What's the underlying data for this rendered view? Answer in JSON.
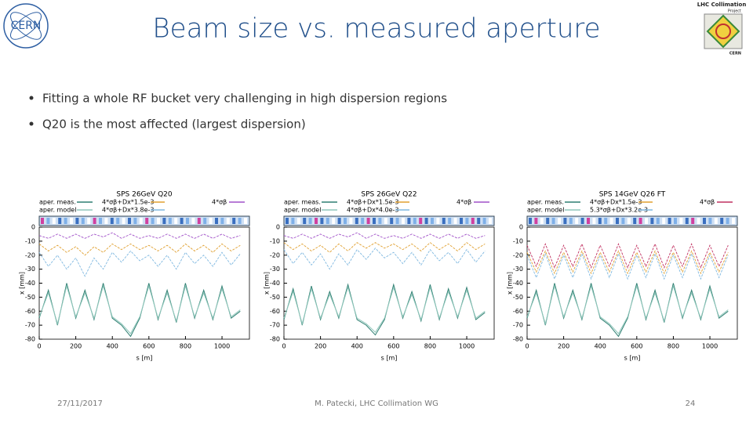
{
  "header": {
    "title": "Beam size vs. measured aperture"
  },
  "logos": {
    "left": "CERN",
    "right": [
      "LHC Collimation",
      "Project",
      "CERN"
    ]
  },
  "bullets": [
    "Fitting a whole RF bucket very challenging in high dispersion regions",
    "Q20 is the most affected (largest dispersion)"
  ],
  "chart_data": [
    {
      "type": "line",
      "title": "SPS 26GeV Q20",
      "xlabel": "s [m]",
      "ylabel": "x [mm]",
      "x": [
        0,
        50,
        100,
        150,
        200,
        250,
        300,
        350,
        400,
        450,
        500,
        550,
        600,
        650,
        700,
        750,
        800,
        850,
        900,
        950,
        1000,
        1050,
        1100
      ],
      "xlim": [
        0,
        1150
      ],
      "xticks": [
        0,
        200,
        400,
        600,
        800,
        1000
      ],
      "ylim": [
        -80,
        0
      ],
      "yticks": [
        0,
        -10,
        -20,
        -30,
        -40,
        -50,
        -60,
        -70,
        -80
      ],
      "series": [
        {
          "name": "aper. meas.",
          "color": "#2f7f72",
          "values": [
            -65,
            -45,
            -70,
            -40,
            -65,
            -45,
            -66,
            -40,
            -65,
            -70,
            -78,
            -65,
            -40,
            -66,
            -45,
            -68,
            -40,
            -65,
            -45,
            -66,
            -42,
            -65,
            -60
          ]
        },
        {
          "name": "aper. model",
          "color": "#8fc7bb",
          "values": [
            -64,
            -47,
            -69,
            -42,
            -64,
            -47,
            -65,
            -42,
            -64,
            -69,
            -76,
            -64,
            -42,
            -65,
            -47,
            -67,
            -42,
            -64,
            -47,
            -65,
            -44,
            -64,
            -59
          ]
        },
        {
          "name": "4*σβ+Dx*1.5e-3",
          "color": "#e0a030",
          "values": [
            -12,
            -17,
            -13,
            -18,
            -14,
            -20,
            -14,
            -18,
            -12,
            -16,
            -12,
            -16,
            -13,
            -17,
            -13,
            -18,
            -12,
            -17,
            -13,
            -18,
            -12,
            -17,
            -13
          ]
        },
        {
          "name": "4*σβ+Dx*3.8e-3",
          "color": "#7fb8e0",
          "values": [
            -18,
            -28,
            -20,
            -30,
            -22,
            -35,
            -22,
            -30,
            -18,
            -25,
            -17,
            -24,
            -20,
            -28,
            -20,
            -30,
            -18,
            -26,
            -20,
            -28,
            -18,
            -27,
            -19
          ]
        },
        {
          "name": "4*σβ",
          "color": "#a050c8",
          "values": [
            -6,
            -8,
            -5,
            -8,
            -5,
            -8,
            -5,
            -7,
            -4,
            -8,
            -5,
            -8,
            -6,
            -8,
            -5,
            -8,
            -5,
            -8,
            -5,
            -8,
            -5,
            -8,
            -6
          ]
        }
      ]
    },
    {
      "type": "line",
      "title": "SPS 26GeV Q22",
      "xlabel": "s [m]",
      "ylabel": "x [mm]",
      "x": [
        0,
        50,
        100,
        150,
        200,
        250,
        300,
        350,
        400,
        450,
        500,
        550,
        600,
        650,
        700,
        750,
        800,
        850,
        900,
        950,
        1000,
        1050,
        1100
      ],
      "xlim": [
        0,
        1150
      ],
      "xticks": [
        0,
        200,
        400,
        600,
        800,
        1000
      ],
      "ylim": [
        -80,
        0
      ],
      "yticks": [
        0,
        -10,
        -20,
        -30,
        -40,
        -50,
        -60,
        -70,
        -80
      ],
      "series": [
        {
          "name": "aper. meas.",
          "color": "#2f7f72",
          "values": [
            -66,
            -44,
            -70,
            -42,
            -66,
            -46,
            -65,
            -41,
            -66,
            -70,
            -77,
            -66,
            -41,
            -65,
            -46,
            -67,
            -41,
            -66,
            -44,
            -65,
            -43,
            -66,
            -61
          ]
        },
        {
          "name": "aper. model",
          "color": "#8fc7bb",
          "values": [
            -65,
            -46,
            -69,
            -44,
            -65,
            -48,
            -64,
            -43,
            -65,
            -69,
            -75,
            -65,
            -43,
            -64,
            -48,
            -66,
            -43,
            -65,
            -46,
            -64,
            -45,
            -65,
            -60
          ]
        },
        {
          "name": "4*σβ+Dx*1.5e-3",
          "color": "#e0a030",
          "values": [
            -11,
            -16,
            -12,
            -17,
            -13,
            -18,
            -12,
            -17,
            -11,
            -15,
            -11,
            -15,
            -12,
            -16,
            -12,
            -17,
            -11,
            -16,
            -12,
            -17,
            -11,
            -16,
            -12
          ]
        },
        {
          "name": "4*σβ+Dx*4.0e-3",
          "color": "#7fb8e0",
          "values": [
            -16,
            -26,
            -18,
            -27,
            -19,
            -30,
            -19,
            -27,
            -16,
            -23,
            -15,
            -22,
            -18,
            -26,
            -18,
            -27,
            -16,
            -24,
            -18,
            -26,
            -16,
            -25,
            -17
          ]
        },
        {
          "name": "4*σβ",
          "color": "#a050c8",
          "values": [
            -6,
            -8,
            -5,
            -8,
            -5,
            -8,
            -5,
            -7,
            -4,
            -8,
            -5,
            -8,
            -6,
            -8,
            -5,
            -8,
            -5,
            -8,
            -5,
            -8,
            -5,
            -8,
            -6
          ]
        }
      ]
    },
    {
      "type": "line",
      "title": "SPS 14GeV Q26 FT",
      "xlabel": "s [m]",
      "ylabel": "x [mm]",
      "x": [
        0,
        50,
        100,
        150,
        200,
        250,
        300,
        350,
        400,
        450,
        500,
        550,
        600,
        650,
        700,
        750,
        800,
        850,
        900,
        950,
        1000,
        1050,
        1100
      ],
      "xlim": [
        0,
        1150
      ],
      "xticks": [
        0,
        200,
        400,
        600,
        800,
        1000
      ],
      "ylim": [
        -80,
        0
      ],
      "yticks": [
        0,
        -10,
        -20,
        -30,
        -40,
        -50,
        -60,
        -70,
        -80
      ],
      "series": [
        {
          "name": "aper. meas.",
          "color": "#2f7f72",
          "values": [
            -65,
            -45,
            -70,
            -40,
            -65,
            -45,
            -66,
            -40,
            -65,
            -70,
            -78,
            -65,
            -40,
            -66,
            -45,
            -68,
            -40,
            -65,
            -45,
            -66,
            -42,
            -65,
            -60
          ]
        },
        {
          "name": "aper. model",
          "color": "#8fc7bb",
          "values": [
            -64,
            -47,
            -69,
            -42,
            -64,
            -47,
            -65,
            -42,
            -64,
            -69,
            -76,
            -64,
            -42,
            -65,
            -47,
            -67,
            -42,
            -64,
            -47,
            -65,
            -44,
            -64,
            -59
          ]
        },
        {
          "name": "4*σβ+Dx*1.5e-3",
          "color": "#e0a030",
          "values": [
            -18,
            -32,
            -17,
            -33,
            -18,
            -32,
            -17,
            -33,
            -18,
            -32,
            -17,
            -33,
            -18,
            -32,
            -17,
            -33,
            -18,
            -32,
            -17,
            -33,
            -18,
            -32,
            -18
          ]
        },
        {
          "name": "5.3*σβ+Dx*3.2e-3",
          "color": "#7fb8e0",
          "values": [
            -20,
            -36,
            -19,
            -37,
            -20,
            -36,
            -19,
            -37,
            -20,
            -36,
            -19,
            -37,
            -20,
            -36,
            -19,
            -37,
            -20,
            -36,
            -19,
            -37,
            -20,
            -36,
            -20
          ]
        },
        {
          "name": "4*σβ",
          "color": "#c03060",
          "values": [
            -13,
            -28,
            -12,
            -29,
            -13,
            -28,
            -12,
            -29,
            -13,
            -28,
            -12,
            -29,
            -13,
            -28,
            -12,
            -29,
            -13,
            -28,
            -12,
            -29,
            -13,
            -28,
            -13
          ]
        }
      ]
    }
  ],
  "footer": {
    "date": "27/11/2017",
    "author": "M. Patecki, LHC Collimation WG",
    "page": "24"
  }
}
